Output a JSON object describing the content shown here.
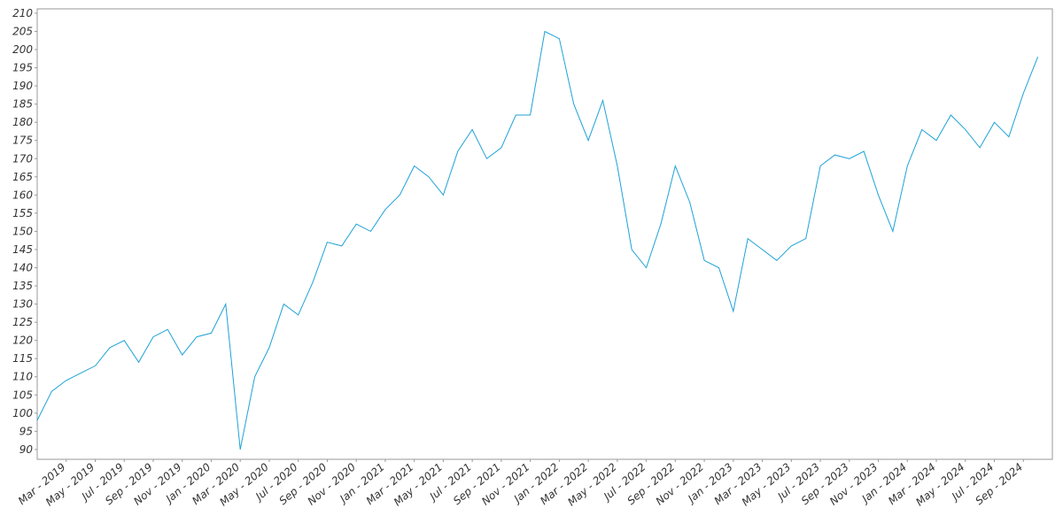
{
  "chart_data": {
    "type": "line",
    "color": "#1ea2d7",
    "x": [
      "2019-01",
      "2019-02",
      "2019-03",
      "2019-04",
      "2019-05",
      "2019-06",
      "2019-07",
      "2019-08",
      "2019-09",
      "2019-10",
      "2019-11",
      "2019-12",
      "2020-01",
      "2020-02",
      "2020-03",
      "2020-04",
      "2020-05",
      "2020-06",
      "2020-07",
      "2020-08",
      "2020-09",
      "2020-10",
      "2020-11",
      "2020-12",
      "2021-01",
      "2021-02",
      "2021-03",
      "2021-04",
      "2021-05",
      "2021-06",
      "2021-07",
      "2021-08",
      "2021-09",
      "2021-10",
      "2021-11",
      "2021-12",
      "2022-01",
      "2022-02",
      "2022-03",
      "2022-04",
      "2022-05",
      "2022-06",
      "2022-07",
      "2022-08",
      "2022-09",
      "2022-10",
      "2022-11",
      "2022-12",
      "2023-01",
      "2023-02",
      "2023-03",
      "2023-04",
      "2023-05",
      "2023-06",
      "2023-07",
      "2023-08",
      "2023-09",
      "2023-10",
      "2023-11",
      "2023-12",
      "2024-01",
      "2024-02",
      "2024-03",
      "2024-04",
      "2024-05",
      "2024-06",
      "2024-07",
      "2024-08",
      "2024-09",
      "2024-10"
    ],
    "values": [
      98,
      106,
      109,
      111,
      113,
      118,
      120,
      114,
      121,
      123,
      116,
      121,
      122,
      130,
      90,
      110,
      118,
      130,
      127,
      136,
      147,
      146,
      152,
      150,
      156,
      160,
      168,
      165,
      160,
      172,
      178,
      170,
      173,
      182,
      182,
      205,
      203,
      185,
      175,
      186,
      168,
      145,
      140,
      152,
      168,
      158,
      142,
      140,
      128,
      148,
      145,
      142,
      146,
      148,
      168,
      171,
      170,
      172,
      160,
      150,
      168,
      178,
      175,
      182,
      178,
      173,
      180,
      176,
      188,
      198
    ],
    "xlim": [
      "2019-01",
      "2024-11"
    ],
    "xticks": [
      {
        "value": "2019-03",
        "label": "Mar - 2019"
      },
      {
        "value": "2019-05",
        "label": "May - 2019"
      },
      {
        "value": "2019-07",
        "label": "Jul - 2019"
      },
      {
        "value": "2019-09",
        "label": "Sep - 2019"
      },
      {
        "value": "2019-11",
        "label": "Nov - 2019"
      },
      {
        "value": "2020-01",
        "label": "Jan - 2020"
      },
      {
        "value": "2020-03",
        "label": "Mar - 2020"
      },
      {
        "value": "2020-05",
        "label": "May - 2020"
      },
      {
        "value": "2020-07",
        "label": "Jul - 2020"
      },
      {
        "value": "2020-09",
        "label": "Sep - 2020"
      },
      {
        "value": "2020-11",
        "label": "Nov - 2020"
      },
      {
        "value": "2021-01",
        "label": "Jan - 2021"
      },
      {
        "value": "2021-03",
        "label": "Mar - 2021"
      },
      {
        "value": "2021-05",
        "label": "May - 2021"
      },
      {
        "value": "2021-07",
        "label": "Jul - 2021"
      },
      {
        "value": "2021-09",
        "label": "Sep - 2021"
      },
      {
        "value": "2021-11",
        "label": "Nov - 2021"
      },
      {
        "value": "2022-01",
        "label": "Jan - 2022"
      },
      {
        "value": "2022-03",
        "label": "Mar - 2022"
      },
      {
        "value": "2022-05",
        "label": "May - 2022"
      },
      {
        "value": "2022-07",
        "label": "Jul - 2022"
      },
      {
        "value": "2022-09",
        "label": "Sep - 2022"
      },
      {
        "value": "2022-11",
        "label": "Nov - 2022"
      },
      {
        "value": "2023-01",
        "label": "Jan - 2023"
      },
      {
        "value": "2023-03",
        "label": "Mar - 2023"
      },
      {
        "value": "2023-05",
        "label": "May - 2023"
      },
      {
        "value": "2023-07",
        "label": "Jul - 2023"
      },
      {
        "value": "2023-09",
        "label": "Sep - 2023"
      },
      {
        "value": "2023-11",
        "label": "Nov - 2023"
      },
      {
        "value": "2024-01",
        "label": "Jan - 2024"
      },
      {
        "value": "2024-03",
        "label": "Mar - 2024"
      },
      {
        "value": "2024-05",
        "label": "May - 2024"
      },
      {
        "value": "2024-07",
        "label": "Jul - 2024"
      },
      {
        "value": "2024-09",
        "label": "Sep - 2024"
      }
    ],
    "ylim": [
      87.3,
      211.2
    ],
    "yticks": [
      90,
      95,
      100,
      105,
      110,
      115,
      120,
      125,
      130,
      135,
      140,
      145,
      150,
      155,
      160,
      165,
      170,
      175,
      180,
      185,
      190,
      195,
      200,
      205,
      210
    ]
  }
}
